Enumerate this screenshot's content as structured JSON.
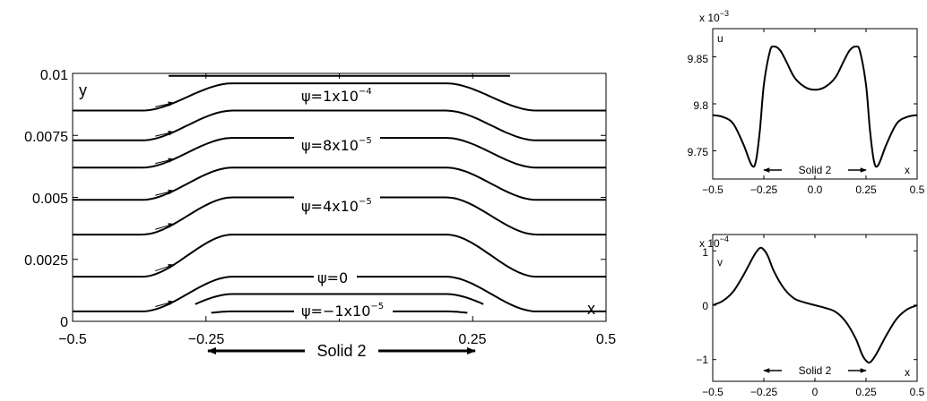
{
  "colors": {
    "line": "#000000",
    "background": "#ffffff"
  },
  "chart_data": [
    {
      "type": "line",
      "xlabel": "x",
      "ylabel": "y",
      "xlim": [
        -0.5,
        0.5
      ],
      "ylim": [
        0,
        0.01
      ],
      "xticks": [
        "−0.5",
        "−0.25",
        "0.25",
        "0.5"
      ],
      "yticks": [
        "0",
        "0.0025",
        "0.005",
        "0.0075",
        "0.01"
      ],
      "annotation": "Solid 2",
      "contour_labels": [
        {
          "text": "ψ=1x10",
          "exp": "−4",
          "x": 0.0,
          "y": 0.0096
        },
        {
          "text": "ψ=8x10",
          "exp": "−5",
          "x": 0.0,
          "y": 0.0076
        },
        {
          "text": "ψ=4x10",
          "exp": "−5",
          "x": 0.0,
          "y": 0.005
        },
        {
          "text": "ψ=0",
          "exp": "",
          "x": 0.0,
          "y": 0.0018
        },
        {
          "text": "ψ=−1x10",
          "exp": "−5",
          "x": 0.0,
          "y": 0.0003
        }
      ],
      "streamlines": [
        {
          "y_left": 0.0099,
          "y_mid": 0.0099,
          "x_start": -0.32
        },
        {
          "y_left": 0.0085,
          "y_mid": 0.0096
        },
        {
          "y_left": 0.0073,
          "y_mid": 0.0085
        },
        {
          "y_left": 0.0062,
          "y_mid": 0.0074
        },
        {
          "y_left": 0.0049,
          "y_mid": 0.0062
        },
        {
          "y_left": 0.0035,
          "y_mid": 0.005
        },
        {
          "y_left": 0.0018,
          "y_mid": 0.0035
        },
        {
          "y_left": 0.0004,
          "y_mid": 0.0018
        },
        {
          "y_left": 0.0,
          "y_mid": 0.0011,
          "x_start": -0.27
        },
        {
          "y_left": 0.0,
          "y_mid": 0.0004,
          "x_start": -0.24
        }
      ]
    },
    {
      "type": "line",
      "ylabel": "u",
      "xlabel": "x",
      "scale_label": "x 10",
      "scale_exp": "−3",
      "xlim": [
        -0.5,
        0.5
      ],
      "ylim": [
        9.72,
        9.88
      ],
      "xticks": [
        "−0.5",
        "−0.25",
        "0.0",
        "0.25",
        "0.5"
      ],
      "yticks": [
        "9.75",
        "9.8",
        "9.85"
      ],
      "annotation": "Solid 2",
      "series": [
        {
          "x": [
            -0.5,
            -0.45,
            -0.4,
            -0.35,
            -0.31,
            -0.29,
            -0.27,
            -0.25,
            -0.22,
            -0.2,
            -0.17,
            -0.14,
            -0.1,
            -0.05,
            0.0,
            0.05,
            0.1,
            0.14,
            0.17,
            0.2,
            0.22,
            0.25,
            0.27,
            0.29,
            0.31,
            0.35,
            0.4,
            0.45,
            0.5
          ],
          "y": [
            9.788,
            9.786,
            9.779,
            9.757,
            9.735,
            9.738,
            9.77,
            9.82,
            9.856,
            9.861,
            9.857,
            9.845,
            9.828,
            9.818,
            9.815,
            9.818,
            9.828,
            9.845,
            9.857,
            9.861,
            9.856,
            9.82,
            9.77,
            9.738,
            9.735,
            9.757,
            9.779,
            9.786,
            9.788
          ]
        }
      ]
    },
    {
      "type": "line",
      "ylabel": "v",
      "xlabel": "x",
      "scale_label": "x 10",
      "scale_exp": "−4",
      "xlim": [
        -0.5,
        0.5
      ],
      "ylim": [
        -1.4,
        1.3
      ],
      "xticks": [
        "−0.5",
        "−0.25",
        "0",
        "0.25",
        "0.5"
      ],
      "yticks": [
        "−1",
        "0",
        "1"
      ],
      "annotation": "Solid 2",
      "series": [
        {
          "x": [
            -0.5,
            -0.45,
            -0.4,
            -0.35,
            -0.3,
            -0.27,
            -0.25,
            -0.23,
            -0.2,
            -0.15,
            -0.1,
            -0.05,
            0.0,
            0.05,
            0.1,
            0.15,
            0.2,
            0.23,
            0.25,
            0.27,
            0.3,
            0.35,
            0.4,
            0.45,
            0.5
          ],
          "y": [
            0.0,
            0.08,
            0.25,
            0.55,
            0.9,
            1.05,
            1.02,
            0.9,
            0.62,
            0.3,
            0.12,
            0.05,
            0.0,
            -0.05,
            -0.12,
            -0.3,
            -0.62,
            -0.9,
            -1.02,
            -1.05,
            -0.9,
            -0.55,
            -0.25,
            -0.08,
            0.0
          ]
        }
      ]
    }
  ]
}
